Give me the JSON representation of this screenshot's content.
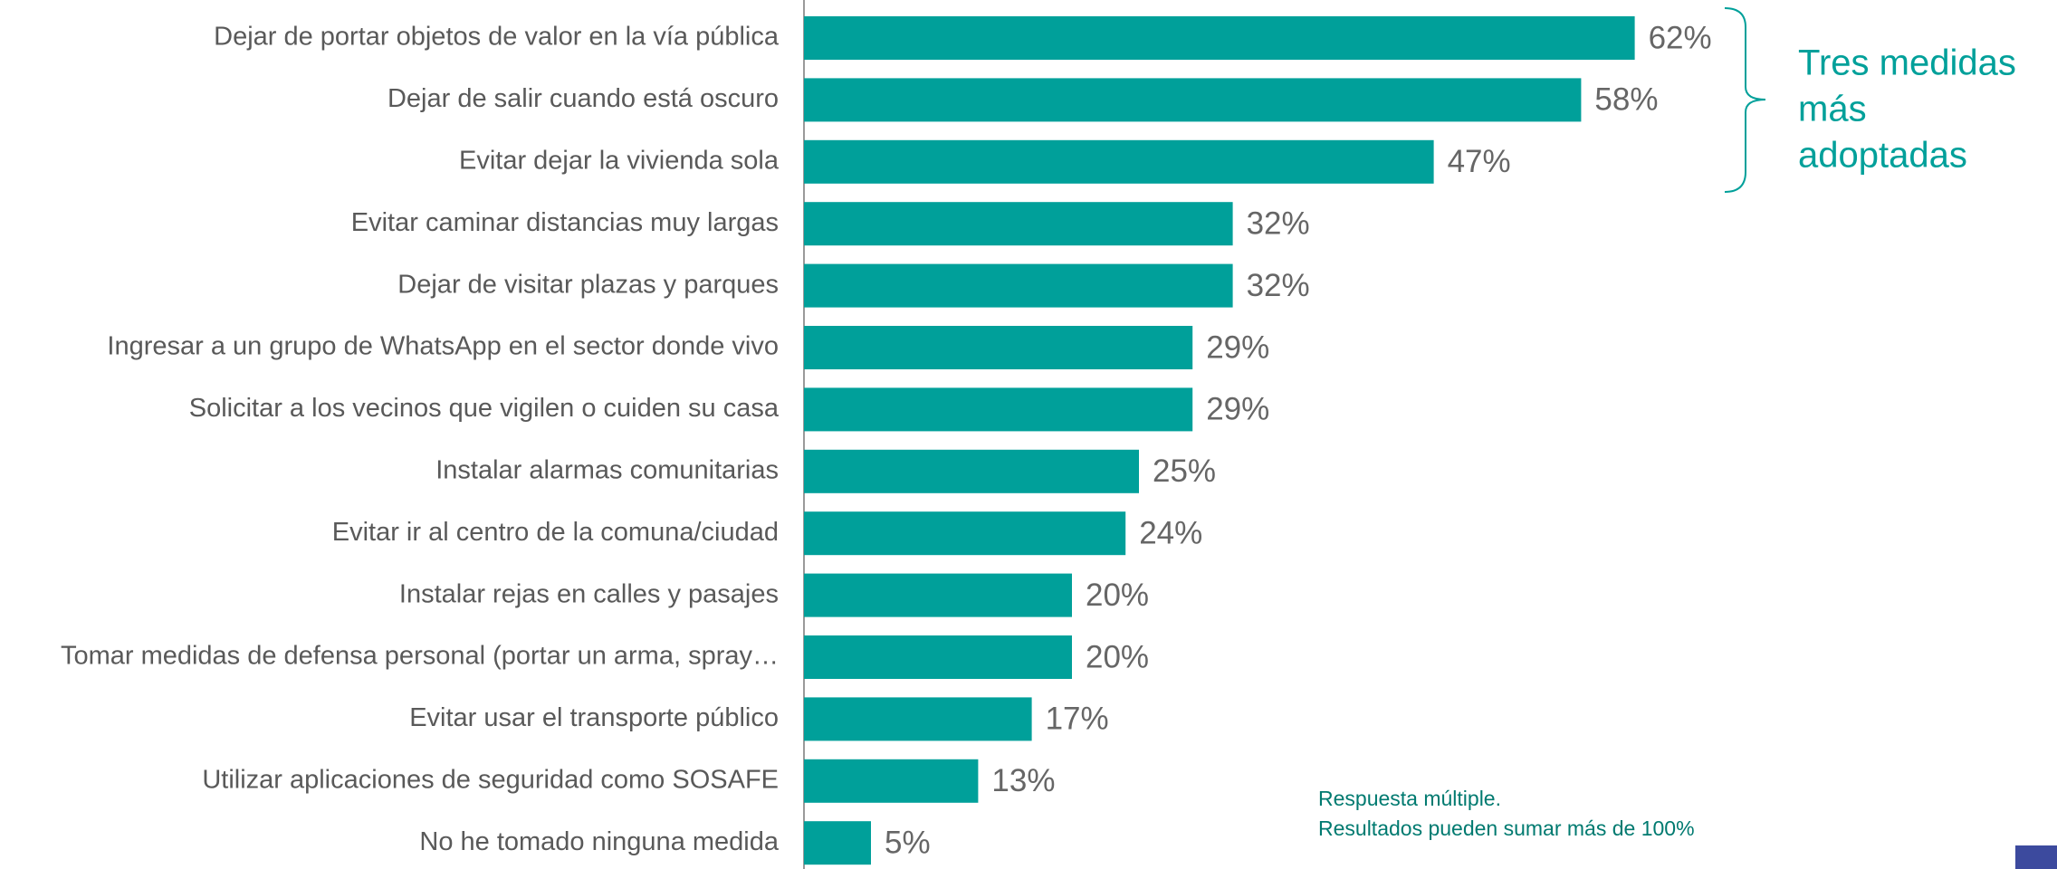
{
  "chart_data": {
    "type": "bar",
    "orientation": "horizontal",
    "categories": [
      "Dejar de portar objetos de valor en la vía pública",
      "Dejar de salir cuando está oscuro",
      "Evitar dejar la vivienda sola",
      "Evitar caminar distancias muy largas",
      "Dejar de visitar plazas y parques",
      "Ingresar a un grupo de WhatsApp en el sector donde vivo",
      "Solicitar a los vecinos que vigilen o cuiden su casa",
      "Instalar alarmas comunitarias",
      "Evitar ir al centro de la comuna/ciudad",
      "Instalar rejas en calles y pasajes",
      "Tomar medidas de defensa personal (portar un arma, spray…",
      "Evitar usar el transporte público",
      "Utilizar aplicaciones de seguridad como SOSAFE",
      "No he tomado ninguna medida"
    ],
    "values": [
      62,
      58,
      47,
      32,
      32,
      29,
      29,
      25,
      24,
      20,
      20,
      17,
      13,
      5
    ],
    "value_labels": [
      "62%",
      "58%",
      "47%",
      "32%",
      "32%",
      "29%",
      "29%",
      "25%",
      "24%",
      "20%",
      "20%",
      "17%",
      "13%",
      "5%"
    ],
    "color": "#00a09a",
    "annotation": [
      "Tres medidas",
      "más",
      "adoptadas"
    ],
    "note": [
      "Respuesta múltiple.",
      "Resultados pueden sumar más de 100%"
    ]
  }
}
